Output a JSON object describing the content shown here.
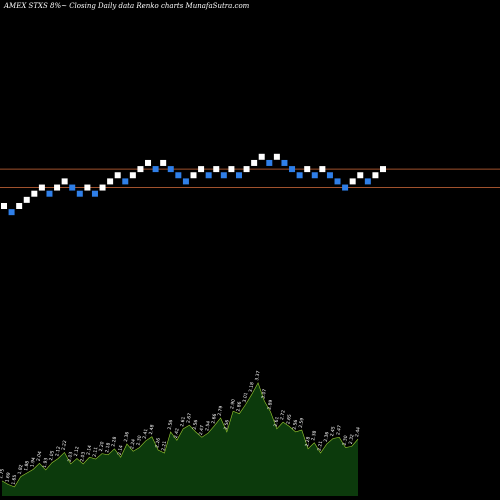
{
  "header": {
    "title": "AMEX  STXS 8%~  Closing Daily data  Renko  charts MunafaSutra.com"
  },
  "colors": {
    "background": "#000000",
    "up_brick": "#ffffff",
    "down_brick": "#2f7fe8",
    "reference_line": "#a0522d",
    "area_fill": "#0c3a0c",
    "area_outline": "#9acd32"
  },
  "chart_data": [
    {
      "type": "renko",
      "series": [
        {
          "values": [
            [
              "u",
              0
            ],
            [
              "d",
              -1
            ],
            [
              "u",
              0
            ],
            [
              "u",
              1
            ],
            [
              "u",
              2
            ],
            [
              "u",
              3
            ],
            [
              "d",
              2
            ],
            [
              "u",
              3
            ],
            [
              "u",
              4
            ],
            [
              "d",
              3
            ],
            [
              "d",
              2
            ],
            [
              "u",
              3
            ],
            [
              "d",
              2
            ],
            [
              "u",
              3
            ],
            [
              "u",
              4
            ],
            [
              "u",
              5
            ],
            [
              "d",
              4
            ],
            [
              "u",
              5
            ],
            [
              "u",
              6
            ],
            [
              "u",
              7
            ],
            [
              "d",
              6
            ],
            [
              "u",
              7
            ],
            [
              "d",
              6
            ],
            [
              "d",
              5
            ],
            [
              "d",
              4
            ],
            [
              "u",
              5
            ],
            [
              "u",
              6
            ],
            [
              "d",
              5
            ],
            [
              "u",
              6
            ],
            [
              "d",
              5
            ],
            [
              "u",
              6
            ],
            [
              "d",
              5
            ],
            [
              "u",
              6
            ],
            [
              "u",
              7
            ],
            [
              "u",
              8
            ],
            [
              "d",
              7
            ],
            [
              "u",
              8
            ],
            [
              "d",
              7
            ],
            [
              "d",
              6
            ],
            [
              "d",
              5
            ],
            [
              "u",
              6
            ],
            [
              "d",
              5
            ],
            [
              "u",
              6
            ],
            [
              "d",
              5
            ],
            [
              "d",
              4
            ],
            [
              "d",
              3
            ],
            [
              "u",
              4
            ],
            [
              "u",
              5
            ],
            [
              "d",
              4
            ],
            [
              "u",
              5
            ],
            [
              "u",
              6
            ]
          ]
        }
      ],
      "reference_lines": [
        6,
        3
      ]
    },
    {
      "type": "area",
      "data_labels": [
        "1.75",
        "1.69",
        "1.65",
        "1.82",
        "1.88",
        "1.94",
        "2.04",
        "1.93",
        "2.05",
        "2.12",
        "2.22",
        "2.03",
        "2.12",
        "2.03",
        "2.14",
        "2.11",
        "2.20",
        "2.18",
        "2.28",
        "2.14",
        "2.36",
        "2.24",
        "2.30",
        "2.41",
        "2.48",
        "2.26",
        "2.21",
        "2.56",
        "2.42",
        "2.61",
        "2.67",
        "2.56",
        "2.47",
        "2.54",
        "2.66",
        "2.79",
        "2.56",
        "2.90",
        "2.86",
        "3.01",
        "3.18",
        "3.37",
        "3.07",
        "2.89",
        "2.61",
        "2.72",
        "2.65",
        "2.56",
        "2.59",
        "2.28",
        "2.38",
        "2.21",
        "2.36",
        "2.45",
        "2.47",
        "2.30",
        "2.32",
        "2.44"
      ]
    }
  ]
}
